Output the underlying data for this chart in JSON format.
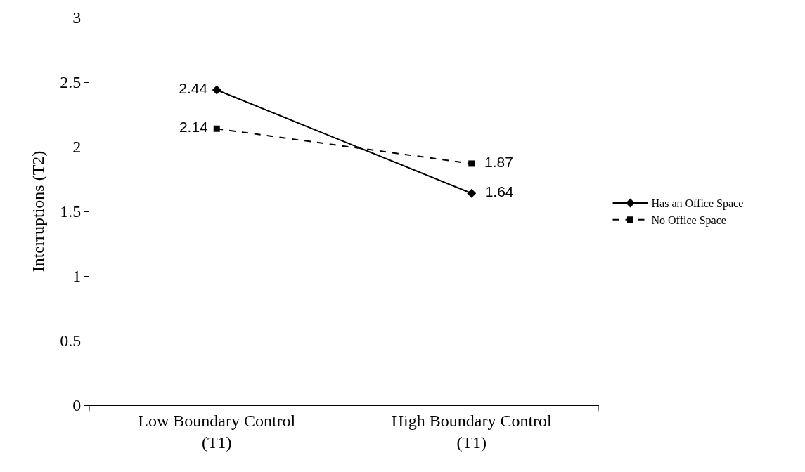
{
  "chart_data": {
    "type": "line",
    "ylabel": "Interruptions (T2)",
    "categories": [
      "Low Boundary Control\n(T1)",
      "High Boundary Control\n(T1)"
    ],
    "series": [
      {
        "name": "Has an Office Space",
        "color": "#000000",
        "values": [
          2.44,
          1.64
        ],
        "marker": "diamond",
        "line_style": "solid"
      },
      {
        "name": "No Office Space",
        "color": "#000000",
        "values": [
          2.14,
          1.87
        ],
        "marker": "square",
        "line_style": "dashed"
      }
    ],
    "ylim": [
      0,
      3
    ],
    "yticks": [
      0,
      0.5,
      1,
      1.5,
      2,
      2.5,
      3
    ],
    "data_labels": true,
    "legend": "right"
  }
}
